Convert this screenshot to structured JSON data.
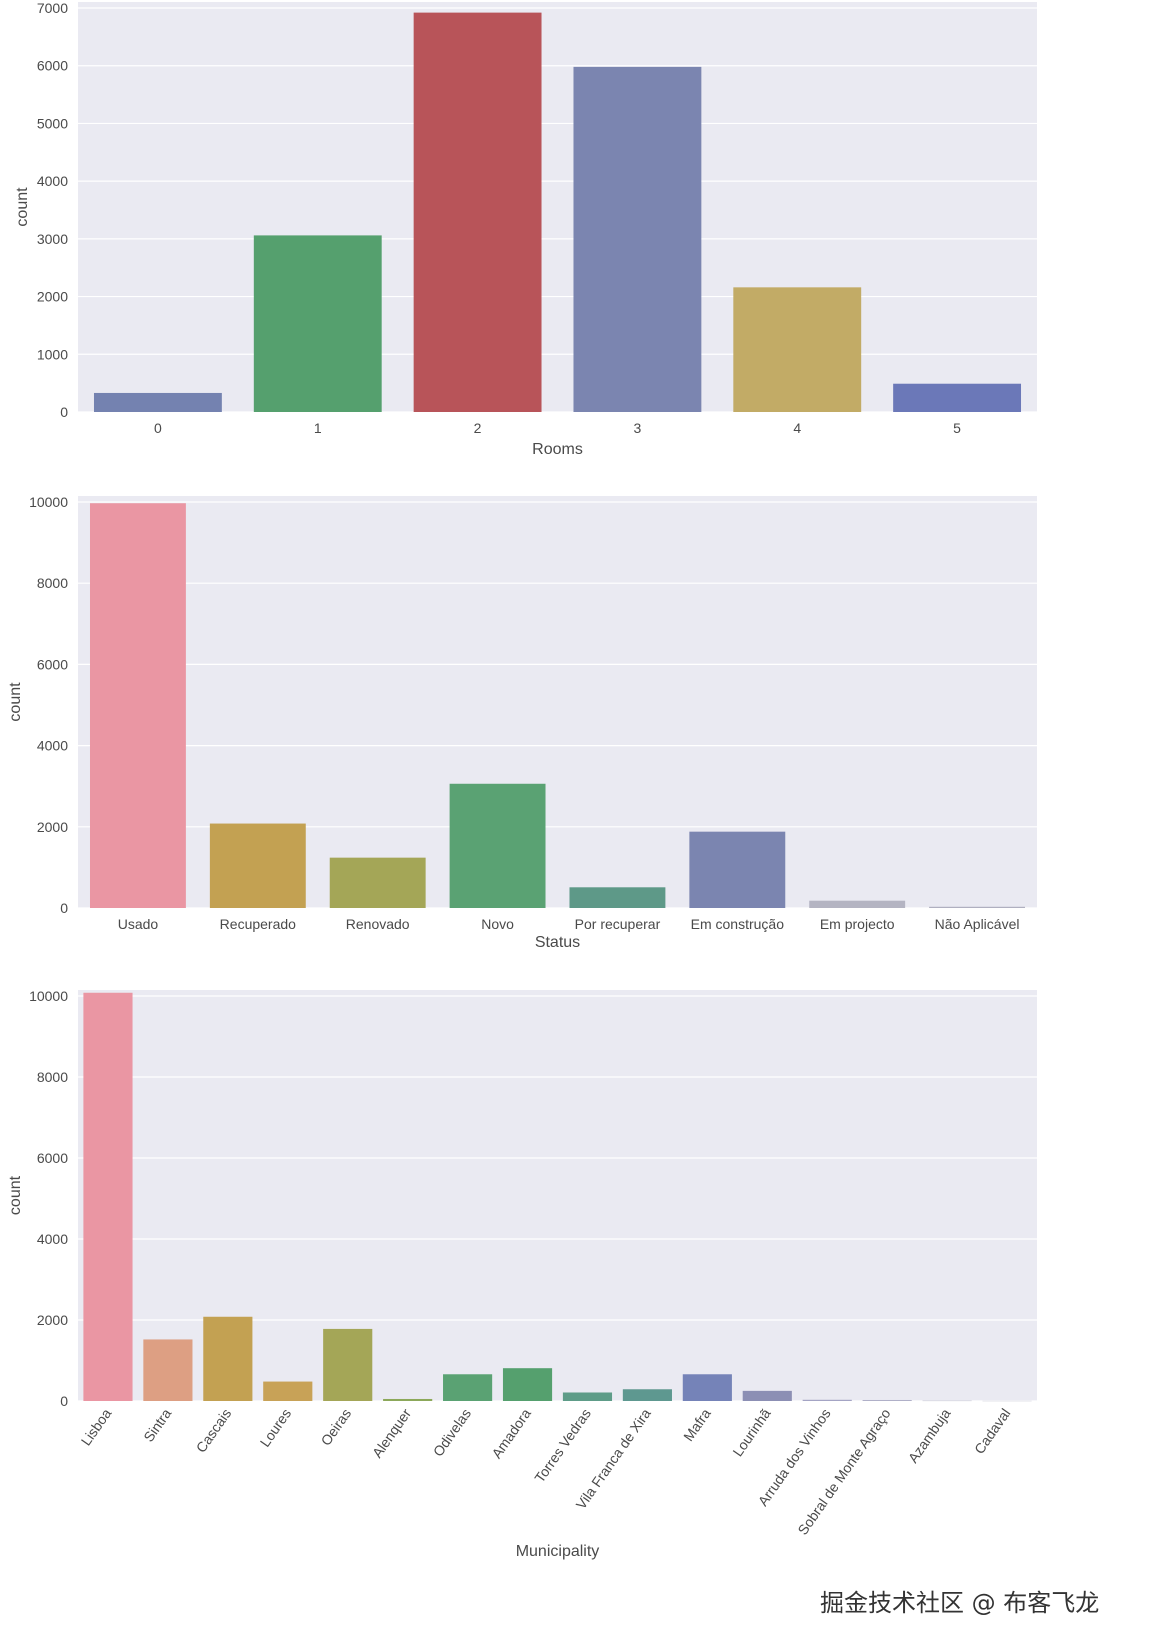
{
  "chart_data": [
    {
      "type": "bar",
      "xlabel": "Rooms",
      "ylabel": "count",
      "categories": [
        "0",
        "1",
        "2",
        "3",
        "4",
        "5"
      ],
      "values": [
        330,
        3060,
        6920,
        5980,
        2160,
        490
      ],
      "colors": [
        "#7482b0",
        "#55a06e",
        "#b85459",
        "#7b85b0",
        "#c2ab66",
        "#6b78b8"
      ],
      "ylim": [
        0,
        7000
      ],
      "yticks": [
        0,
        1000,
        2000,
        3000,
        4000,
        5000,
        6000,
        7000
      ],
      "grid": true
    },
    {
      "type": "bar",
      "xlabel": "Status",
      "ylabel": "count",
      "categories": [
        "Usado",
        "Recuperado",
        "Renovado",
        "Novo",
        "Por recuperar",
        "Em construção",
        "Em projecto",
        "Não Aplicável"
      ],
      "values": [
        9970,
        2080,
        1240,
        3060,
        510,
        1880,
        180,
        30
      ],
      "colors": [
        "#ea96a3",
        "#c3a152",
        "#a4a657",
        "#5aa273",
        "#5e9988",
        "#7b85b0",
        "#b4b4c2",
        "#b0b0c0"
      ],
      "ylim": [
        0,
        10000
      ],
      "yticks": [
        0,
        2000,
        4000,
        6000,
        8000,
        10000
      ],
      "grid": true
    },
    {
      "type": "bar",
      "xlabel": "Municipality",
      "ylabel": "count",
      "categories": [
        "Lisboa",
        "Sintra",
        "Cascais",
        "Loures",
        "Oeiras",
        "Alenquer",
        "Odivelas",
        "Amadora",
        "Torres Vedras",
        "Vila Franca de Xira",
        "Mafra",
        "Lourinhã",
        "Arruda dos Vinhos",
        "Sobral de Monte Agraço",
        "Azambuja",
        "Cadaval"
      ],
      "values": [
        10080,
        1520,
        2080,
        480,
        1780,
        50,
        660,
        810,
        210,
        290,
        660,
        250,
        30,
        25,
        10,
        5
      ],
      "colors": [
        "#ea96a3",
        "#dd9f83",
        "#c3a152",
        "#c8a257",
        "#a4a657",
        "#8ca85a",
        "#5aa273",
        "#55a06e",
        "#5e9c88",
        "#5e9890",
        "#7583b8",
        "#8c8fb4",
        "#a4a4c4",
        "#b0b0c8",
        "#c0c0d0",
        "#d0d0dc"
      ],
      "ylim": [
        0,
        10000
      ],
      "yticks": [
        0,
        2000,
        4000,
        6000,
        8000,
        10000
      ],
      "grid": true
    }
  ],
  "watermark": "掘金技术社区 @ 布客飞龙"
}
